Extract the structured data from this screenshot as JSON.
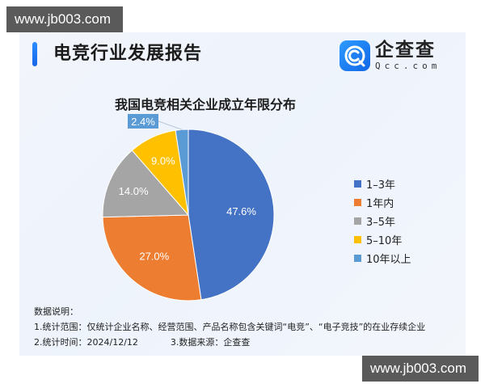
{
  "watermark": {
    "top": "www.jb003.com",
    "bottom": "www.jb003.com"
  },
  "header": {
    "title": "电竞行业发展报告",
    "logo": {
      "cn": "企查查",
      "en": "Qcc.com",
      "icon": "qcc-logo-icon"
    }
  },
  "chart_data": {
    "type": "pie",
    "title": "我国电竞相关企业成立年限分布",
    "categories": [
      "1-3年",
      "1年内",
      "3-5年",
      "5-10年",
      "10年以上"
    ],
    "values": [
      47.6,
      27.0,
      14.0,
      9.0,
      2.4
    ],
    "labels": [
      "47.6%",
      "27.0%",
      "14.0%",
      "9.0%",
      "2.4%"
    ],
    "colors": [
      "#4472c4",
      "#ed7d31",
      "#a5a5a5",
      "#ffc000",
      "#5b9bd5"
    ],
    "start_angle": "12 o'clock",
    "direction": "clockwise",
    "legend_position": "right"
  },
  "legend": [
    {
      "label": "1–3年",
      "color": "#4472c4"
    },
    {
      "label": "1年内",
      "color": "#ed7d31"
    },
    {
      "label": "3–5年",
      "color": "#a5a5a5"
    },
    {
      "label": "5–10年",
      "color": "#ffc000"
    },
    {
      "label": "10年以上",
      "color": "#5b9bd5"
    }
  ],
  "notes": {
    "heading": "数据说明：",
    "scope": "1.统计范围：仅统计企业名称、经营范围、产品名称包含关键词“电竞”、“电子竞技”的在业存续企业",
    "time": "2.统计时间：2024/12/12",
    "source": "3.数据来源：企查查"
  }
}
